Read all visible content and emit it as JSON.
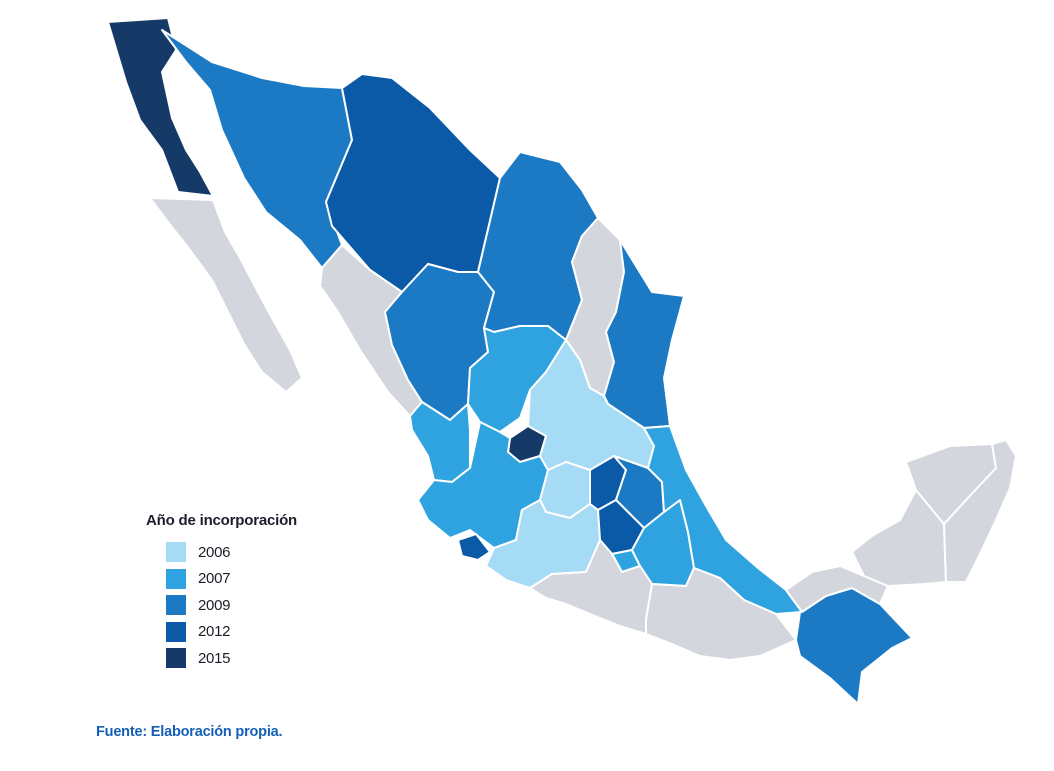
{
  "legend": {
    "title": "Año de incorporación",
    "items": [
      {
        "label": "2006",
        "color": "#a6dbf6"
      },
      {
        "label": "2007",
        "color": "#2fa3df"
      },
      {
        "label": "2009",
        "color": "#1b7ac3"
      },
      {
        "label": "2012",
        "color": "#0b5aa8"
      },
      {
        "label": "2015",
        "color": "#163a68"
      }
    ]
  },
  "not_incorporated_color": "#d3d6dc",
  "source": "Fuente: Elaboración propia."
}
